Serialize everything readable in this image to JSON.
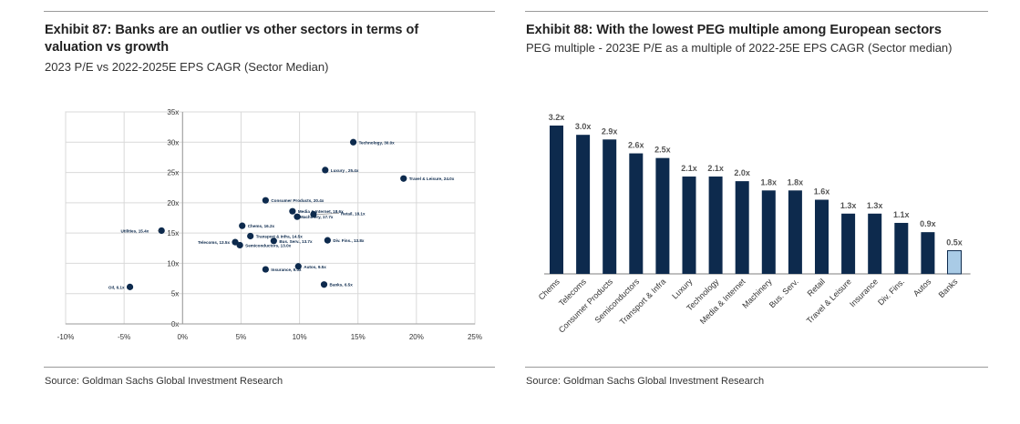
{
  "exhibit87": {
    "title": "Exhibit 87: Banks are an outlier vs other sectors in terms of valuation vs growth",
    "subtitle": "2023 P/E vs 2022-2025E EPS CAGR (Sector Median)",
    "source": "Source: Goldman Sachs Global Investment Research",
    "chart_data": {
      "type": "scatter",
      "title": "",
      "xlabel": "",
      "ylabel": "",
      "xlim": [
        -10,
        25
      ],
      "ylim": [
        0,
        35
      ],
      "x_ticks": [
        -10,
        -5,
        0,
        5,
        10,
        15,
        20,
        25
      ],
      "y_ticks": [
        0,
        5,
        10,
        15,
        20,
        25,
        30,
        35
      ],
      "x_tick_labels": [
        "-10%",
        "-5%",
        "0%",
        "5%",
        "10%",
        "15%",
        "20%",
        "25%"
      ],
      "y_tick_labels": [
        "0x",
        "5x",
        "10x",
        "15x",
        "20x",
        "25x",
        "30x",
        "35x"
      ],
      "grid": true,
      "marker_color": "#0d2a4d",
      "points": [
        {
          "label": "Technology, 30.0x",
          "x": 14.6,
          "y": 30.0
        },
        {
          "label": "Luxury , 25.4x",
          "x": 12.2,
          "y": 25.4
        },
        {
          "label": "Travel & Leisure, 24.0x",
          "x": 18.9,
          "y": 24.0
        },
        {
          "label": "Consumer Products, 20.4x",
          "x": 7.1,
          "y": 20.4
        },
        {
          "label": "Media & Internet, 18.6x",
          "x": 9.4,
          "y": 18.6
        },
        {
          "label": "Retail, 18.1x",
          "x": 11.2,
          "y": 18.1
        },
        {
          "label": "Machinery, 17.7x",
          "x": 9.8,
          "y": 17.7
        },
        {
          "label": "Utilities, 15.4x",
          "x": -1.8,
          "y": 15.4
        },
        {
          "label": "Chems, 16.2x",
          "x": 5.1,
          "y": 16.2
        },
        {
          "label": "Transport & Infra, 14.5x",
          "x": 5.8,
          "y": 14.5
        },
        {
          "label": "Bus. Serv., 13.7x",
          "x": 7.8,
          "y": 13.7
        },
        {
          "label": "Div. Fins., 13.8x",
          "x": 12.4,
          "y": 13.8
        },
        {
          "label": "Telecoms, 13.5x",
          "x": 4.5,
          "y": 13.5
        },
        {
          "label": "Semiconductors, 13.0x",
          "x": 4.9,
          "y": 13.0
        },
        {
          "label": "Autos, 9.5x",
          "x": 9.9,
          "y": 9.5
        },
        {
          "label": "Insurance, 9.0x",
          "x": 7.1,
          "y": 9.0
        },
        {
          "label": "Oil, 6.1x",
          "x": -4.5,
          "y": 6.1
        },
        {
          "label": "Banks, 6.5x",
          "x": 12.1,
          "y": 6.5
        }
      ]
    }
  },
  "exhibit88": {
    "title": "Exhibit 88: With the lowest PEG multiple among European sectors",
    "subtitle": "PEG multiple - 2023E P/E as a multiple of 2022-25E EPS CAGR (Sector median)",
    "source": "Source: Goldman Sachs Global Investment Research",
    "chart_data": {
      "type": "bar",
      "title": "",
      "xlabel": "",
      "ylabel": "",
      "ylim": [
        0,
        3.5
      ],
      "categories": [
        "Chems",
        "Telecoms",
        "Consumer Products",
        "Semiconductors",
        "Transport & Infra",
        "Luxury",
        "Technology",
        "Media & Internet",
        "Machinery",
        "Bus. Serv.",
        "Retail",
        "Travel & Leisure",
        "Insurance",
        "Div. Fins.",
        "Autos",
        "Banks"
      ],
      "values": [
        3.2,
        3.0,
        2.9,
        2.6,
        2.5,
        2.1,
        2.1,
        2.0,
        1.8,
        1.8,
        1.6,
        1.3,
        1.3,
        1.1,
        0.9,
        0.5
      ],
      "data_labels": [
        "3.2x",
        "3.0x",
        "2.9x",
        "2.6x",
        "2.5x",
        "2.1x",
        "2.1x",
        "2.0x",
        "1.8x",
        "1.8x",
        "1.6x",
        "1.3x",
        "1.3x",
        "1.1x",
        "0.9x",
        "0.5x"
      ],
      "bar_color": "#0d2a4d",
      "highlight_category": "Banks",
      "highlight_color": "#a9cbe6",
      "highlight_border": "#0d2a4d",
      "label_color": "#555555"
    }
  }
}
